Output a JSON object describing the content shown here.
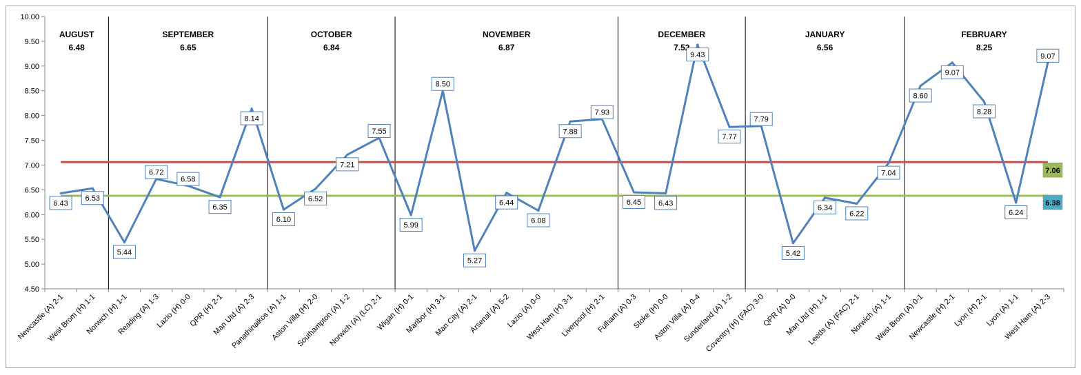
{
  "chart_data": {
    "type": "line",
    "ylim": [
      4.5,
      10.0
    ],
    "y_ticks": [
      "4.50",
      "5.00",
      "5.50",
      "6.00",
      "6.50",
      "7.00",
      "7.50",
      "8.00",
      "8.50",
      "9.00",
      "9.50",
      "10.00"
    ],
    "grid": false,
    "categories": [
      "Newcastle (A) 2-1",
      "West Brom (H) 1-1",
      "Norwich (H) 1-1",
      "Reading (A) 1-3",
      "Lazio (H) 0-0",
      "QPR (H) 2-1",
      "Man Utd (A) 2-3",
      "Panathinaikos (A) 1-1",
      "Aston Villa (H) 2-0",
      "Southampton (A) 1-2",
      "Norwich (A) (LC) 2-1",
      "Wigan (H) 0-1",
      "Maribor (H) 3-1",
      "Man City (A) 2-1",
      "Arsenal (A) 5-2",
      "Lazio (A) 0-0",
      "West Ham (H) 3-1",
      "Liverpool (H) 2-1",
      "Fulham (A) 0-3",
      "Stoke (H) 0-0",
      "Aston Villa (A) 0-4",
      "Sunderland (A) 1-2",
      "Coventry (H) (FAC) 3-0",
      "QPR (A) 0-0",
      "Man Utd (H) 1-1",
      "Leeds (A) (FAC) 2-1",
      "Norwich (A) 1-1",
      "West Brom (A) 0-1",
      "Newcastle (H) 2-1",
      "Lyon (H) 2-1",
      "Lyon (A) 1-1",
      "West Ham (A) 2-3"
    ],
    "series": [
      {
        "values": [
          6.43,
          6.53,
          5.44,
          6.72,
          6.58,
          6.35,
          8.14,
          6.1,
          6.52,
          7.21,
          7.55,
          5.99,
          8.5,
          5.27,
          6.44,
          6.08,
          7.88,
          7.93,
          6.45,
          6.43,
          9.43,
          7.77,
          7.79,
          5.42,
          6.34,
          6.22,
          7.04,
          8.6,
          9.07,
          8.28,
          6.24,
          9.07
        ],
        "labels": [
          "6.43",
          "6.53",
          "5.44",
          "6.72",
          "6.58",
          "6.35",
          "8.14",
          "6.10",
          "6.52",
          "7.21",
          "7.55",
          "5.99",
          "8.50",
          "5.27",
          "6.44",
          "6.08",
          "7.88",
          "7.93",
          "6.45",
          "6.43",
          "9.43",
          "7.77",
          "7.79",
          "5.42",
          "6.34",
          "6.22",
          "7.04",
          "8.60",
          "9.07",
          "8.28",
          "6.24",
          "9.07"
        ],
        "color": "#4f81bd"
      }
    ],
    "reference_lines": [
      {
        "value": 7.06,
        "label": "7.06",
        "color": "#c0504d",
        "label_bg": "#9bbb59"
      },
      {
        "value": 6.38,
        "label": "6.38",
        "color": "#9bbb59",
        "label_bg": "#4bacc6"
      }
    ],
    "months": [
      {
        "name": "AUGUST",
        "avg": "6.48",
        "start": 0,
        "end": 1
      },
      {
        "name": "SEPTEMBER",
        "avg": "6.65",
        "start": 2,
        "end": 6
      },
      {
        "name": "OCTOBER",
        "avg": "6.84",
        "start": 7,
        "end": 10
      },
      {
        "name": "NOVEMBER",
        "avg": "6.87",
        "start": 11,
        "end": 17
      },
      {
        "name": "DECEMBER",
        "avg": "7.52",
        "start": 18,
        "end": 21
      },
      {
        "name": "JANUARY",
        "avg": "6.56",
        "start": 22,
        "end": 26
      },
      {
        "name": "FEBRUARY",
        "avg": "8.25",
        "start": 27,
        "end": 31
      }
    ],
    "label_side": [
      "below",
      "below",
      "below",
      "above",
      "above",
      "below",
      "below",
      "below",
      "below",
      "below",
      "above",
      "below",
      "above",
      "below",
      "below",
      "below",
      "below",
      "above",
      "below",
      "below",
      "below",
      "below",
      "above",
      "below",
      "below",
      "below",
      "below",
      "below",
      "below",
      "below",
      "below",
      "above"
    ]
  }
}
